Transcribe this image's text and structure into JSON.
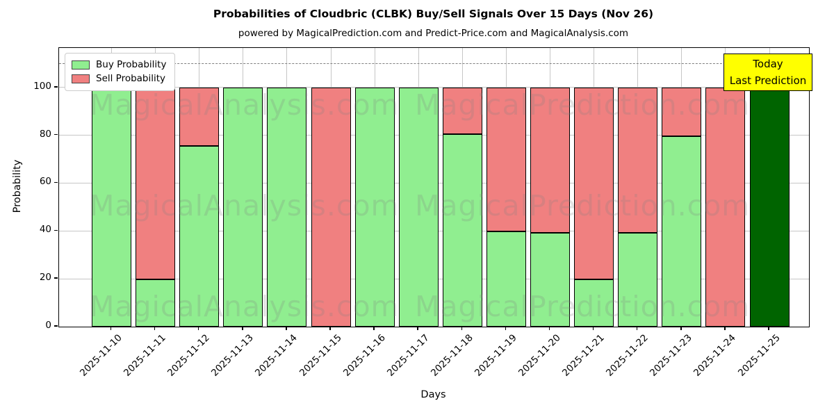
{
  "title": "Probabilities of Cloudbric (CLBK) Buy/Sell Signals Over 15 Days (Nov 26)",
  "subtitle": "powered by MagicalPrediction.com and Predict-Price.com and MagicalAnalysis.com",
  "annotation": {
    "line1": "Today",
    "line2": "Last Prediction"
  },
  "axes": {
    "x_label": "Days",
    "y_label": "Probability",
    "y_ticks": [
      0,
      20,
      40,
      60,
      80,
      100
    ],
    "y_max": 116.5,
    "dashed_line_y": 110,
    "grid": "on",
    "legend_position": "upper left"
  },
  "watermarks": [
    "MagicalAnalysis.com",
    "MagicalPrediction.com"
  ],
  "colors": {
    "buy": "#90EE90",
    "sell": "#F08080",
    "today_bar": "#006400",
    "annotation_bg": "#FFFF00",
    "grid": "#c6c6c6",
    "dashed_line": "#7f7f7f",
    "watermark": "rgba(128,128,128,0.22)",
    "bar_edge": "#000000"
  },
  "chart_data": {
    "type": "bar",
    "stacked": true,
    "categories": [
      "2025-11-10",
      "2025-11-11",
      "2025-11-12",
      "2025-11-13",
      "2025-11-14",
      "2025-11-15",
      "2025-11-16",
      "2025-11-17",
      "2025-11-18",
      "2025-11-19",
      "2025-11-20",
      "2025-11-21",
      "2025-11-22",
      "2025-11-23",
      "2025-11-24",
      "2025-11-25"
    ],
    "series": [
      {
        "name": "Buy Probability",
        "color": "#90EE90",
        "values": [
          100,
          19.7,
          75.6,
          100,
          100,
          0,
          100,
          100,
          80.4,
          39.7,
          39.2,
          19.8,
          39.2,
          79.6,
          0,
          100
        ]
      },
      {
        "name": "Sell Probability",
        "color": "#F08080",
        "values": [
          0,
          80.3,
          24.4,
          0,
          0,
          100,
          0,
          0,
          19.6,
          60.3,
          60.8,
          80.2,
          60.8,
          20.4,
          100,
          0
        ]
      }
    ],
    "today_index": 15,
    "ylim": [
      0,
      116.5
    ],
    "xlabel": "Days",
    "ylabel": "Probability"
  }
}
